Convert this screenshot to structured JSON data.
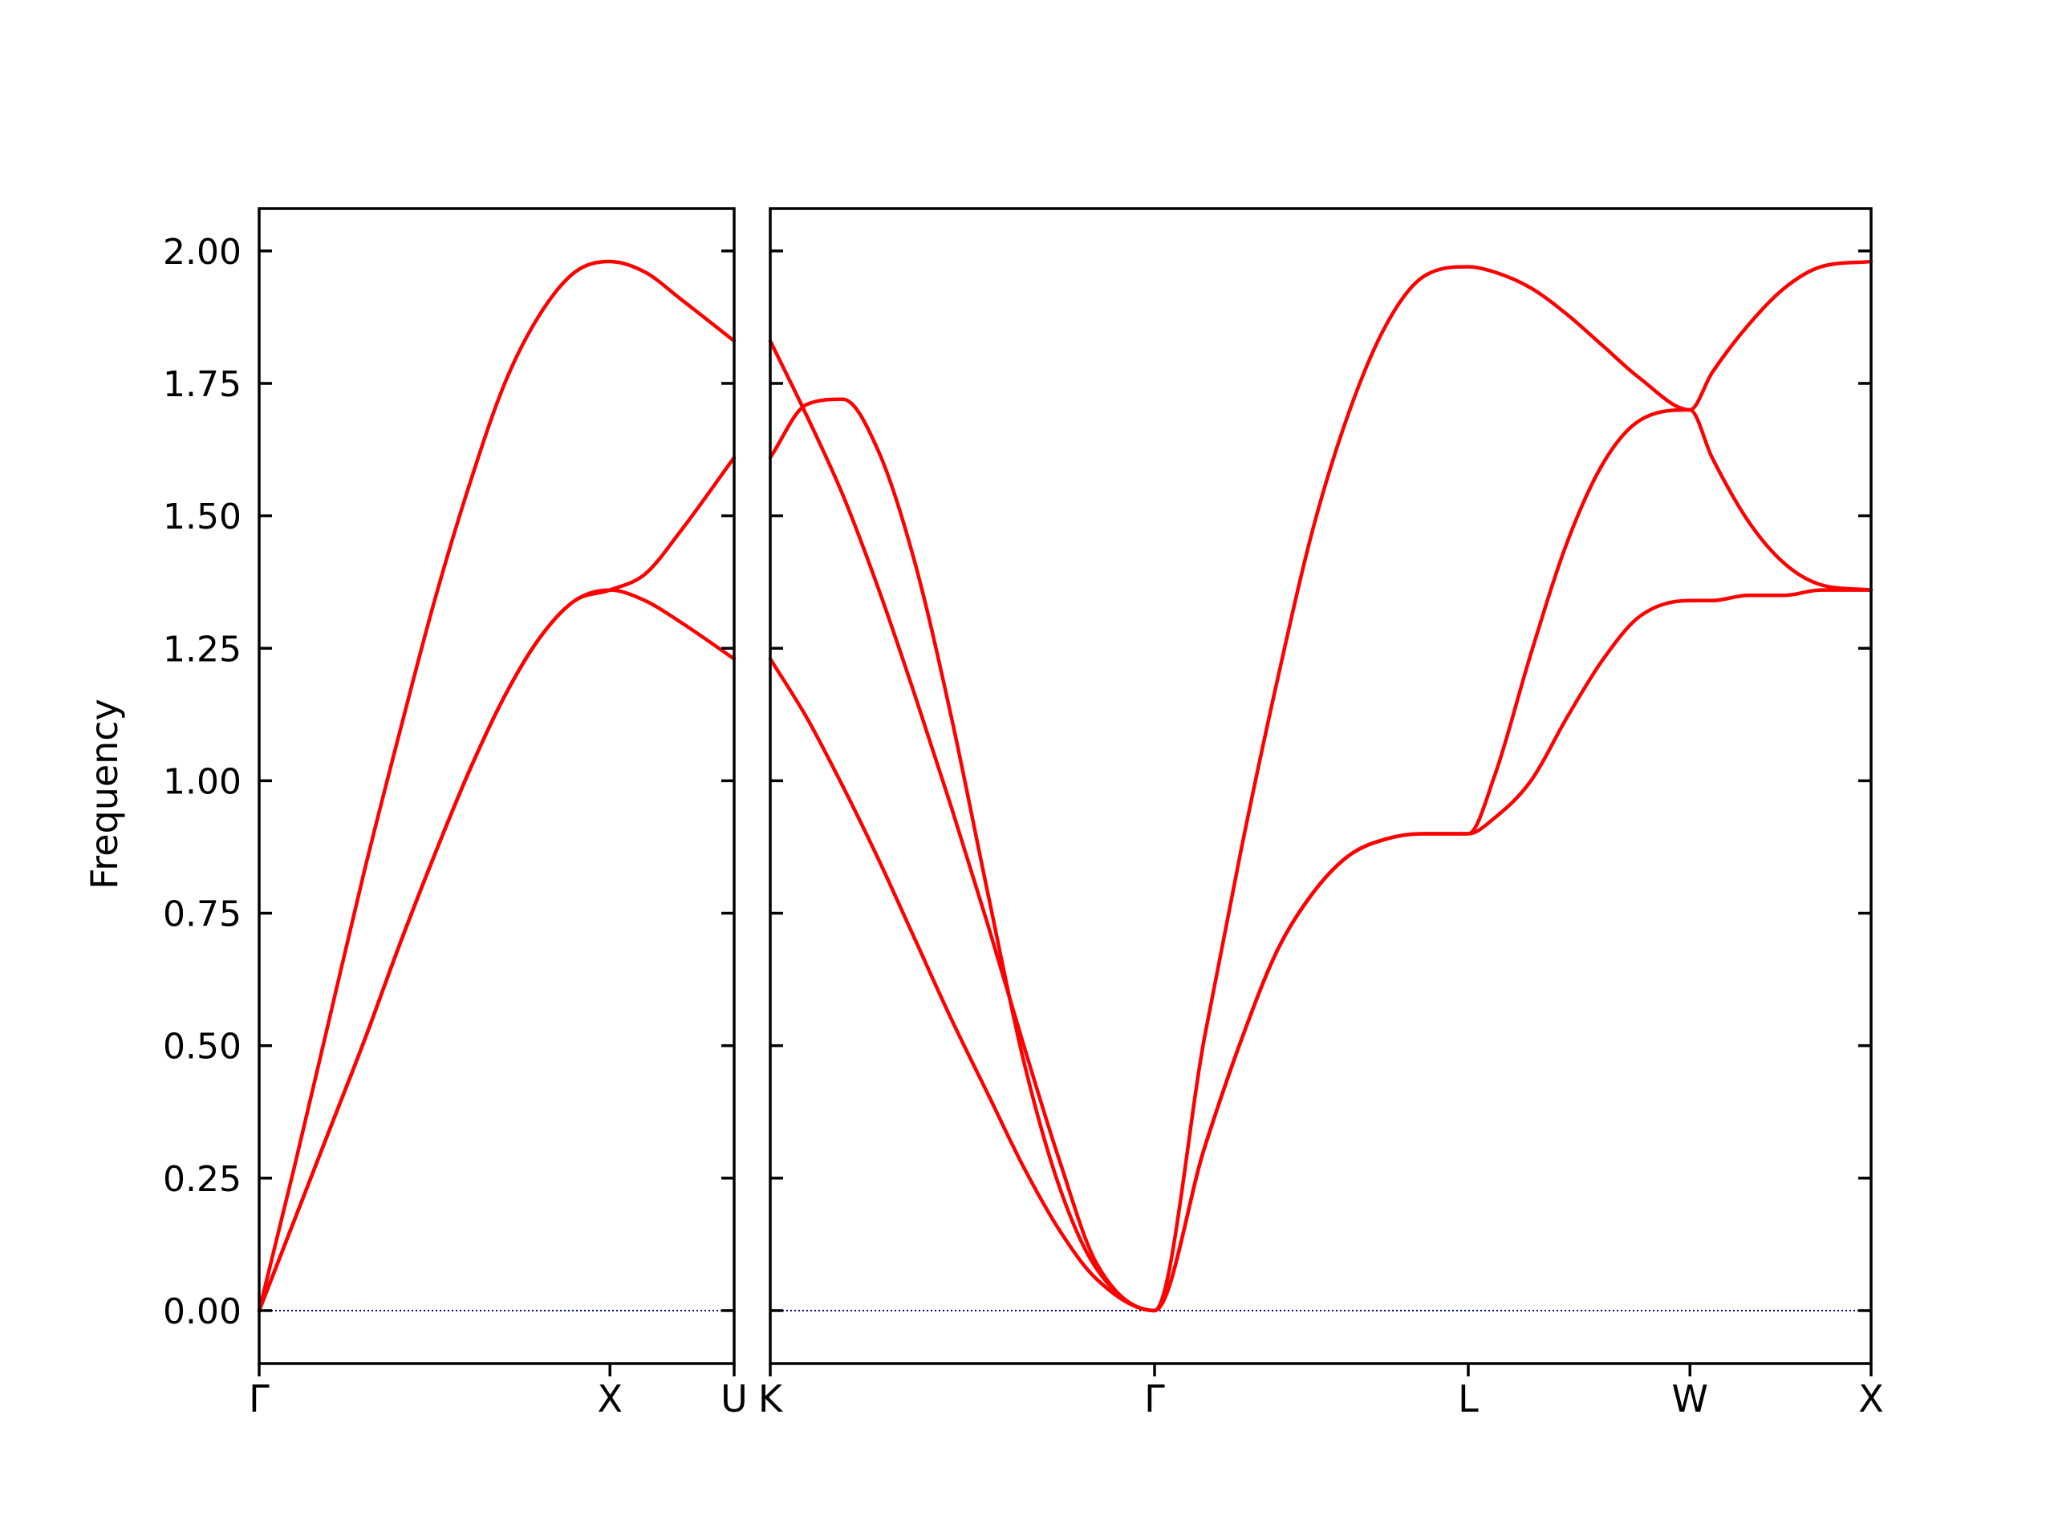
{
  "chart_data": {
    "type": "line",
    "ylabel": "Frequency",
    "ylim": [
      -0.1,
      2.08
    ],
    "yticks": [
      0.0,
      0.25,
      0.5,
      0.75,
      1.0,
      1.25,
      1.5,
      1.75,
      2.0
    ],
    "ytick_labels": [
      "0.00",
      "0.25",
      "0.50",
      "0.75",
      "1.00",
      "1.25",
      "1.50",
      "1.75",
      "2.00"
    ],
    "zero_line": {
      "y": 0.0,
      "color": "#00008b",
      "style": "dotted"
    },
    "series_color": "#ff0000",
    "grid": false,
    "panels": [
      {
        "q_ticks": [
          0.0,
          1.0,
          1.354
        ],
        "q_labels": [
          "Γ",
          "X",
          "U"
        ],
        "xlim": [
          0.0,
          1.354
        ],
        "series": [
          {
            "points": [
              [
                0.0,
                0.0
              ],
              [
                0.1,
                0.27
              ],
              [
                0.2,
                0.55
              ],
              [
                0.3,
                0.83
              ],
              [
                0.4,
                1.09
              ],
              [
                0.5,
                1.34
              ],
              [
                0.6,
                1.56
              ],
              [
                0.7,
                1.75
              ],
              [
                0.8,
                1.88
              ],
              [
                0.9,
                1.96
              ],
              [
                1.0,
                1.98
              ],
              [
                1.1,
                1.96
              ],
              [
                1.2,
                1.91
              ],
              [
                1.354,
                1.83
              ]
            ]
          },
          {
            "points": [
              [
                0.0,
                0.0
              ],
              [
                0.1,
                0.17
              ],
              [
                0.2,
                0.34
              ],
              [
                0.3,
                0.51
              ],
              [
                0.4,
                0.69
              ],
              [
                0.5,
                0.86
              ],
              [
                0.6,
                1.02
              ],
              [
                0.7,
                1.16
              ],
              [
                0.8,
                1.27
              ],
              [
                0.9,
                1.34
              ],
              [
                1.0,
                1.36
              ],
              [
                1.1,
                1.39
              ],
              [
                1.2,
                1.47
              ],
              [
                1.354,
                1.61
              ]
            ]
          },
          {
            "points": [
              [
                0.0,
                0.0
              ],
              [
                0.1,
                0.17
              ],
              [
                0.2,
                0.34
              ],
              [
                0.3,
                0.51
              ],
              [
                0.4,
                0.69
              ],
              [
                0.5,
                0.86
              ],
              [
                0.6,
                1.02
              ],
              [
                0.7,
                1.16
              ],
              [
                0.8,
                1.27
              ],
              [
                0.9,
                1.34
              ],
              [
                1.0,
                1.36
              ],
              [
                1.1,
                1.34
              ],
              [
                1.2,
                1.3
              ],
              [
                1.354,
                1.23
              ]
            ]
          }
        ]
      },
      {
        "q_ticks": [
          0.0,
          1.061,
          1.927,
          2.539,
          3.039
        ],
        "q_labels": [
          "K",
          "Γ",
          "L",
          "W",
          "X"
        ],
        "xlim": [
          0.0,
          3.039
        ],
        "series": [
          {
            "points": [
              [
                0.0,
                1.83
              ],
              [
                0.1,
                1.69
              ],
              [
                0.2,
                1.54
              ],
              [
                0.3,
                1.36
              ],
              [
                0.4,
                1.16
              ],
              [
                0.5,
                0.95
              ],
              [
                0.6,
                0.73
              ],
              [
                0.7,
                0.5
              ],
              [
                0.8,
                0.28
              ],
              [
                0.9,
                0.09
              ],
              [
                1.061,
                0.0
              ],
              [
                1.2,
                0.52
              ],
              [
                1.3,
                0.87
              ],
              [
                1.4,
                1.19
              ],
              [
                1.5,
                1.48
              ],
              [
                1.6,
                1.7
              ],
              [
                1.7,
                1.86
              ],
              [
                1.8,
                1.95
              ],
              [
                1.927,
                1.97
              ],
              [
                2.0,
                1.96
              ],
              [
                2.1,
                1.93
              ],
              [
                2.2,
                1.88
              ],
              [
                2.3,
                1.82
              ],
              [
                2.4,
                1.76
              ],
              [
                2.539,
                1.7
              ],
              [
                2.6,
                1.77
              ],
              [
                2.7,
                1.86
              ],
              [
                2.8,
                1.93
              ],
              [
                2.9,
                1.97
              ],
              [
                3.039,
                1.98
              ]
            ]
          },
          {
            "points": [
              [
                0.0,
                1.61
              ],
              [
                0.1,
                1.71
              ],
              [
                0.2,
                1.72
              ],
              [
                0.3,
                1.62
              ],
              [
                0.4,
                1.41
              ],
              [
                0.5,
                1.12
              ],
              [
                0.6,
                0.79
              ],
              [
                0.7,
                0.47
              ],
              [
                0.8,
                0.23
              ],
              [
                0.9,
                0.08
              ],
              [
                1.061,
                0.0
              ],
              [
                1.2,
                0.31
              ],
              [
                1.3,
                0.51
              ],
              [
                1.4,
                0.68
              ],
              [
                1.5,
                0.79
              ],
              [
                1.6,
                0.86
              ],
              [
                1.7,
                0.89
              ],
              [
                1.8,
                0.9
              ],
              [
                1.927,
                0.9
              ],
              [
                2.0,
                1.01
              ],
              [
                2.1,
                1.24
              ],
              [
                2.2,
                1.45
              ],
              [
                2.3,
                1.6
              ],
              [
                2.4,
                1.68
              ],
              [
                2.539,
                1.7
              ],
              [
                2.6,
                1.61
              ],
              [
                2.7,
                1.49
              ],
              [
                2.8,
                1.41
              ],
              [
                2.9,
                1.37
              ],
              [
                3.039,
                1.36
              ]
            ]
          },
          {
            "points": [
              [
                0.0,
                1.23
              ],
              [
                0.1,
                1.12
              ],
              [
                0.2,
                0.99
              ],
              [
                0.3,
                0.85
              ],
              [
                0.4,
                0.7
              ],
              [
                0.5,
                0.55
              ],
              [
                0.6,
                0.41
              ],
              [
                0.7,
                0.27
              ],
              [
                0.8,
                0.15
              ],
              [
                0.9,
                0.06
              ],
              [
                1.061,
                0.0
              ],
              [
                1.2,
                0.31
              ],
              [
                1.3,
                0.51
              ],
              [
                1.4,
                0.68
              ],
              [
                1.5,
                0.79
              ],
              [
                1.6,
                0.86
              ],
              [
                1.7,
                0.89
              ],
              [
                1.8,
                0.9
              ],
              [
                1.927,
                0.9
              ],
              [
                2.0,
                0.93
              ],
              [
                2.1,
                1.0
              ],
              [
                2.2,
                1.12
              ],
              [
                2.3,
                1.23
              ],
              [
                2.4,
                1.31
              ],
              [
                2.539,
                1.34
              ],
              [
                2.6,
                1.34
              ],
              [
                2.7,
                1.35
              ],
              [
                2.8,
                1.35
              ],
              [
                2.9,
                1.36
              ],
              [
                3.039,
                1.36
              ]
            ]
          }
        ]
      }
    ]
  }
}
